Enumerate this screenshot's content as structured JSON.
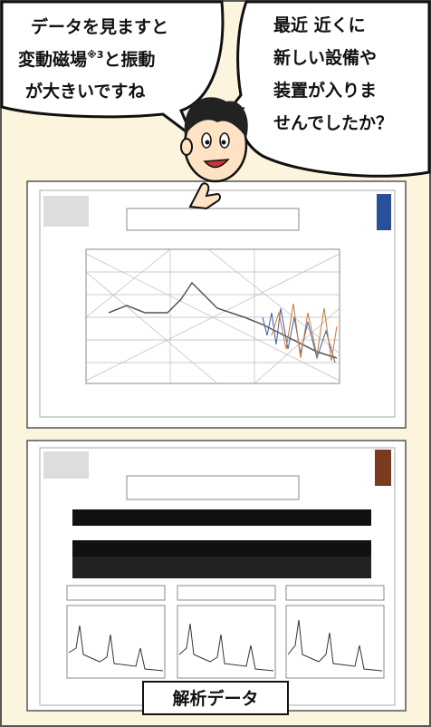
{
  "left_bubble": {
    "lines": [
      [
        "データを見ますと"
      ],
      [
        "変動磁場",
        "※3",
        "と振動"
      ],
      [
        "が大きいですね"
      ]
    ]
  },
  "right_bubble": {
    "lines": [
      "最近 近くに",
      "新しい設備や",
      "装置が入りま",
      "せんでしたか？"
    ]
  },
  "caption": "解析データ"
}
